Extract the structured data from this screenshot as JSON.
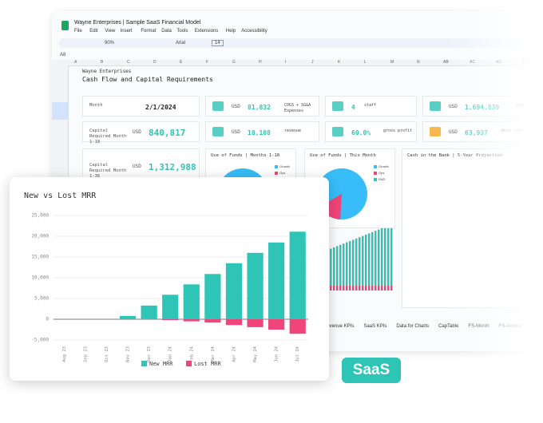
{
  "window": {
    "title": "Wayne Enterprises | Sample SaaS Financial Model",
    "menu": [
      "File",
      "Edit",
      "View",
      "Insert",
      "Format",
      "Data",
      "Tools",
      "Extensions",
      "Help",
      "Accessibility"
    ],
    "zoom": "90%",
    "font": "Arial",
    "font_size": "14",
    "cell_ref": "A8"
  },
  "columns": [
    "A",
    "B",
    "C",
    "D",
    "E",
    "F",
    "G",
    "H",
    "I",
    "J",
    "K",
    "L",
    "M",
    "N",
    "AB",
    "AC",
    "AD",
    "AE"
  ],
  "sheet": {
    "company": "Wayne Enterprises",
    "heading": "Cash Flow and Capital Requirements",
    "cards": [
      {
        "label": "Month",
        "value": "2/1/2024"
      },
      {
        "currency": "USD",
        "value": "81,832",
        "note": "COGS + SG&A Expenses"
      },
      {
        "value": "4",
        "note": "staff"
      },
      {
        "currency": "USD",
        "value": "1,694,839",
        "note": "cash reserves"
      },
      {
        "label": "Capital Required Month 1-18",
        "currency": "USD",
        "value": "840,817"
      },
      {
        "currency": "USD",
        "value": "18,108",
        "note": "revenue"
      },
      {
        "value": "60.0%",
        "note": "gross profit"
      },
      {
        "currency": "USD",
        "value": "63,937",
        "note": "burn rate"
      },
      {
        "label": "Capital Required Month 1-36",
        "currency": "USD",
        "value": "1,312,988"
      }
    ]
  },
  "panels": [
    "Use of Funds | Months 1-18",
    "Use of Funds | This Month",
    "Cash in the Bank | 5-Year Projection"
  ],
  "pie_legend": [
    "Growth",
    "Ops",
    "R&D"
  ],
  "tabs": [
    "Revenue KPIs",
    "SaaS KPIs",
    "Data for Charts",
    "CapTable",
    "FS-Month",
    "FS-Annual"
  ],
  "badge": "SaaS",
  "chart_data": {
    "type": "bar",
    "title": "New vs Lost MRR",
    "categories": [
      "Aug 23",
      "Sep 23",
      "Oct 23",
      "Nov 23",
      "Dec 23",
      "Jan 24",
      "Feb 24",
      "Mar 24",
      "Apr 24",
      "May 24",
      "Jun 24",
      "Jul 24"
    ],
    "series": [
      {
        "name": "New MRR",
        "color": "#2ec4b6",
        "values": [
          0,
          0,
          0,
          800,
          3300,
          5900,
          8400,
          10900,
          13500,
          16000,
          18500,
          21100
        ]
      },
      {
        "name": "Lost MRR",
        "color": "#f0457a",
        "values": [
          0,
          0,
          0,
          0,
          0,
          -200,
          -500,
          -800,
          -1400,
          -1900,
          -2500,
          -3500
        ]
      }
    ],
    "ylim": [
      -5000,
      25000
    ],
    "yticks": [
      {
        "value": -5000,
        "label": "-5,000"
      },
      0,
      {
        "value": 5000,
        "label": "5,000"
      },
      {
        "value": 10000,
        "label": "10,000"
      },
      {
        "value": 15000,
        "label": "15,000"
      },
      {
        "value": 20000,
        "label": "20,000"
      },
      {
        "value": 25000,
        "label": "25,000"
      }
    ],
    "grid": true,
    "legend": "bottom"
  }
}
